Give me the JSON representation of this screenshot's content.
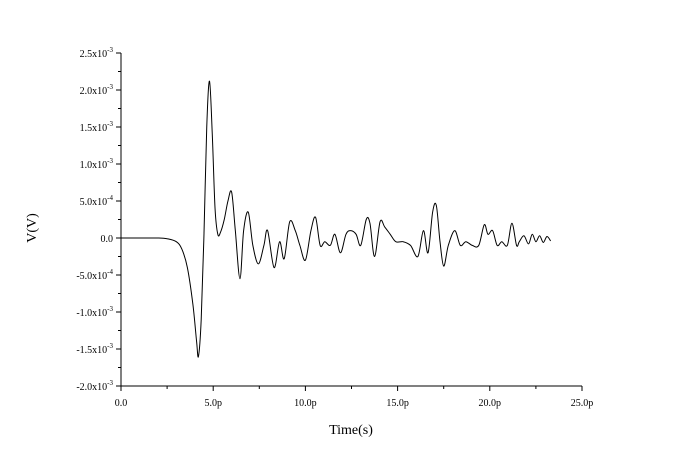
{
  "chart_data": {
    "type": "line",
    "title": "",
    "xlabel": "Time(s)",
    "ylabel": "V(V)",
    "xlim": [
      0,
      25
    ],
    "ylim": [
      -0.002,
      0.0025
    ],
    "x_ticks": [
      {
        "value": 0,
        "label": "0.0"
      },
      {
        "value": 5,
        "label": "5.0p"
      },
      {
        "value": 10,
        "label": "10.0p"
      },
      {
        "value": 15,
        "label": "15.0p"
      },
      {
        "value": 20,
        "label": "20.0p"
      },
      {
        "value": 25,
        "label": "25.0p"
      }
    ],
    "y_ticks": [
      {
        "value": 0.0025,
        "mant": "2.5x10",
        "exp": "-3"
      },
      {
        "value": 0.002,
        "mant": "2.0x10",
        "exp": "-3"
      },
      {
        "value": 0.0015,
        "mant": "1.5x10",
        "exp": "-3"
      },
      {
        "value": 0.001,
        "mant": "1.0x10",
        "exp": "-3"
      },
      {
        "value": 0.0005,
        "mant": "5.0x10",
        "exp": "-4"
      },
      {
        "value": 0,
        "mant": "0.0",
        "exp": ""
      },
      {
        "value": -0.0005,
        "mant": "-5.0x10",
        "exp": "-4"
      },
      {
        "value": -0.001,
        "mant": "-1.0x10",
        "exp": "-3"
      },
      {
        "value": -0.0015,
        "mant": "-1.5x10",
        "exp": "-3"
      },
      {
        "value": -0.002,
        "mant": "-2.0x10",
        "exp": "-3"
      }
    ],
    "grid": false,
    "legend": "none",
    "line_color": "#000000",
    "series": [
      {
        "x": [
          0,
          1,
          2,
          2.5,
          3,
          3.3,
          3.6,
          3.9,
          4.1,
          4.2,
          4.35,
          4.5,
          4.65,
          4.8,
          4.95,
          5.1,
          5.25,
          5.4,
          5.6,
          5.8,
          6.0,
          6.2,
          6.45,
          6.65,
          6.9,
          7.15,
          7.45,
          7.75,
          7.95,
          8.3,
          8.6,
          8.85,
          9.15,
          9.45,
          9.7,
          10.0,
          10.3,
          10.55,
          10.8,
          11.05,
          11.35,
          11.6,
          11.9,
          12.2,
          12.45,
          12.75,
          13.0,
          13.3,
          13.5,
          13.75,
          14.05,
          14.3,
          14.6,
          14.9,
          15.3,
          15.7,
          16.1,
          16.4,
          16.65,
          16.9,
          17.1,
          17.3,
          17.5,
          17.75,
          18.1,
          18.4,
          18.7,
          19.05,
          19.4,
          19.7,
          19.9,
          20.15,
          20.4,
          20.65,
          20.95,
          21.2,
          21.45,
          21.6,
          21.85,
          22.1,
          22.3,
          22.5,
          22.7,
          22.9,
          23.1,
          23.3
        ],
        "y": [
          0,
          0,
          0,
          -1e-05,
          -5e-05,
          -0.00015,
          -0.0004,
          -0.0009,
          -0.0014,
          -0.0016,
          -0.0011,
          5e-05,
          0.0015,
          0.00212,
          0.0014,
          0.0004,
          5e-05,
          8e-05,
          0.00025,
          0.0005,
          0.00062,
          0.0001,
          -0.00055,
          0.0001,
          0.00035,
          -0.0001,
          -0.00035,
          -0.0001,
          0.0001,
          -0.0004,
          -5e-05,
          -0.00028,
          0.00022,
          0.0001,
          -0.0001,
          -0.0003,
          0.0001,
          0.00028,
          -0.0001,
          -5e-05,
          -0.0001,
          5e-05,
          -0.0002,
          5e-05,
          0.0001,
          5e-05,
          -0.0001,
          0.00025,
          0.0002,
          -0.00025,
          0.00022,
          0.00015,
          5e-05,
          -5e-05,
          -5e-05,
          -0.0001,
          -0.00025,
          0.0001,
          -0.0002,
          0.00035,
          0.00044,
          -5e-05,
          -0.00038,
          -0.0001,
          0.0001,
          -0.0001,
          -5e-05,
          -0.0001,
          -0.0001,
          0.00018,
          5e-05,
          0.0001,
          -0.0001,
          -5e-05,
          -0.0001,
          0.0002,
          -0.0001,
          -5e-05,
          3e-05,
          -8e-05,
          5e-05,
          -5e-05,
          3e-05,
          -6e-05,
          2e-05,
          -4e-05
        ]
      }
    ]
  }
}
